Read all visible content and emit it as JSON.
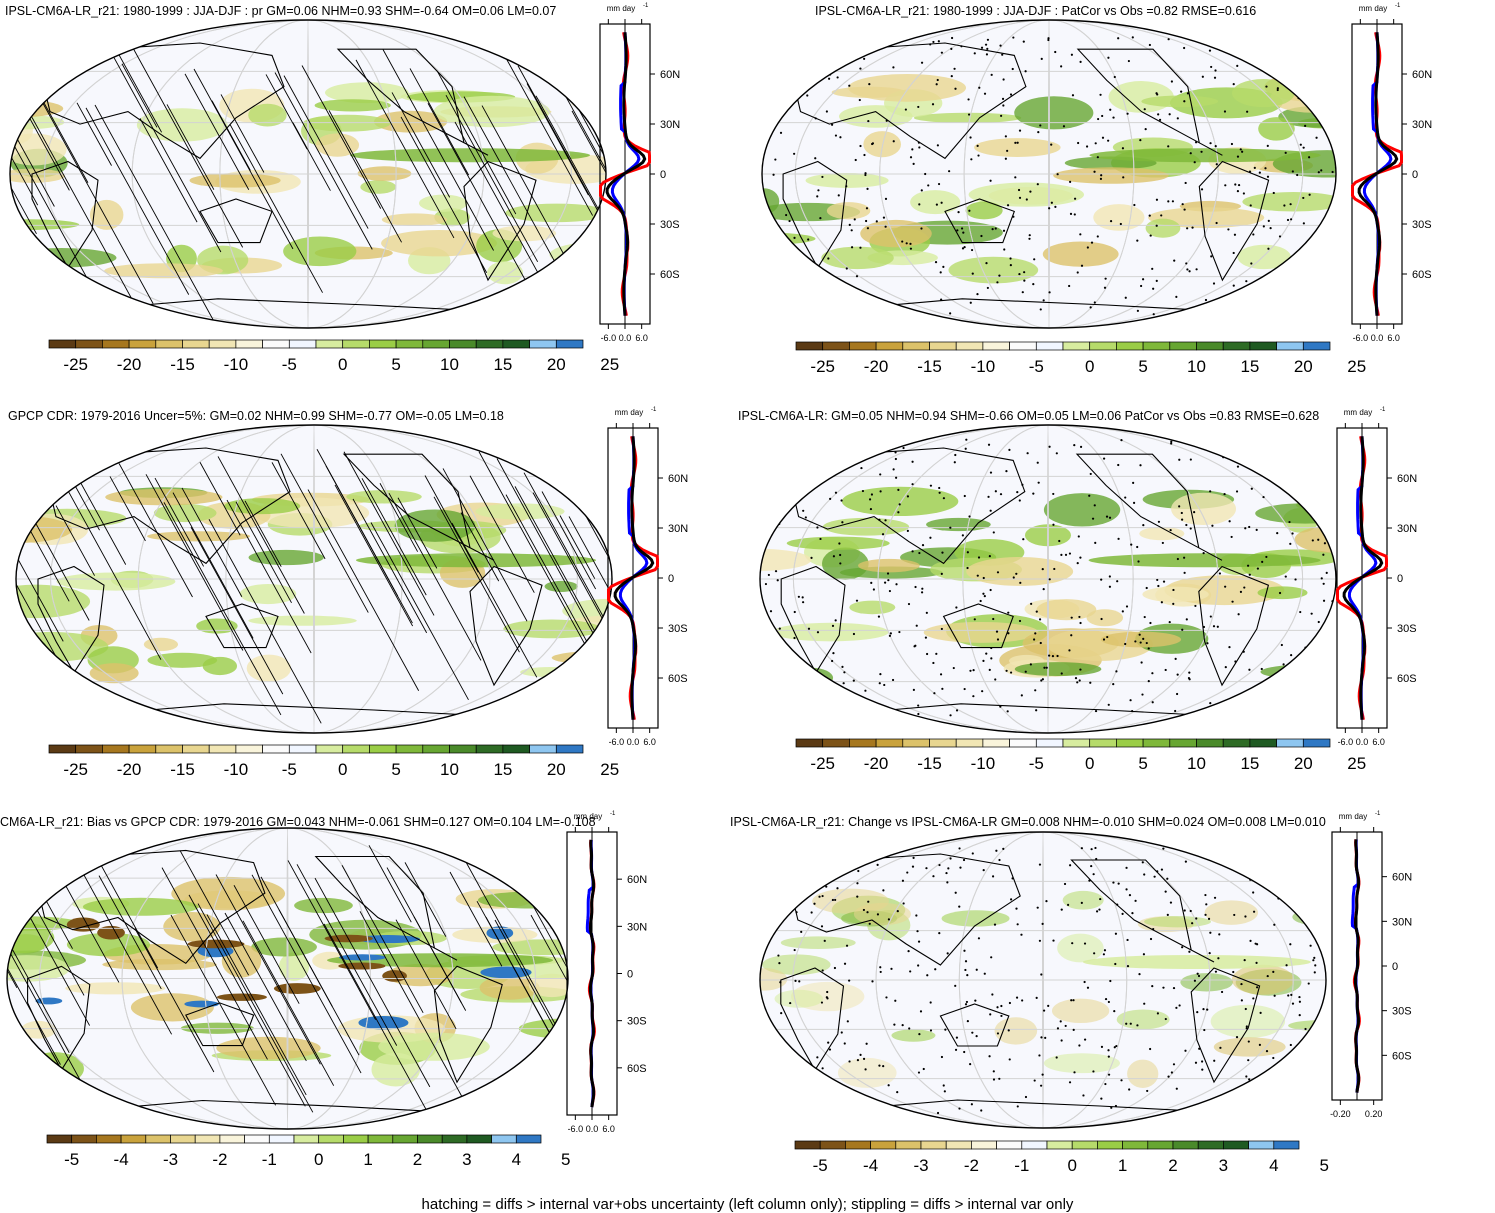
{
  "panels": [
    {
      "title": "IPSL-CM6A-LR_r21: 1980-1999 : JJA-DJF : pr GM=0.06 NHM=0.93 SHM=-0.64 OM=0.06 LM=0.07",
      "profile": {
        "unit": "mm day",
        "unit_sup": "-1",
        "xticks": [
          "-6.0",
          "0.0",
          "6.0"
        ],
        "yticks": [
          "60N",
          "30N",
          "0",
          "30S",
          "60S"
        ],
        "xlim": [
          -9,
          9
        ]
      },
      "colorbar": {
        "labels": [
          "-25",
          "-20",
          "-15",
          "-10",
          "-5",
          "0",
          "5",
          "10",
          "15",
          "20",
          "25"
        ]
      },
      "overlay": "hatching"
    },
    {
      "title": "IPSL-CM6A-LR_r21: 1980-1999 : JJA-DJF : PatCor vs Obs =0.82 RMSE=0.616",
      "profile": {
        "unit": "mm day",
        "unit_sup": "-1",
        "xticks": [
          "-6.0",
          "0.0",
          "6.0"
        ],
        "yticks": [
          "60N",
          "30N",
          "0",
          "30S",
          "60S"
        ],
        "xlim": [
          -9,
          9
        ]
      },
      "colorbar": {
        "labels": [
          "-25",
          "-20",
          "-15",
          "-10",
          "-5",
          "0",
          "5",
          "10",
          "15",
          "20",
          "25"
        ]
      },
      "overlay": "stippling"
    },
    {
      "title": "GPCP CDR: 1979-2016 Uncer=5%: GM=0.02 NHM=0.99 SHM=-0.77 OM=-0.05 LM=0.18",
      "profile": {
        "unit": "mm day",
        "unit_sup": "-1",
        "xticks": [
          "-6.0",
          "0.0",
          "6.0"
        ],
        "yticks": [
          "60N",
          "30N",
          "0",
          "30S",
          "60S"
        ],
        "xlim": [
          -9,
          9
        ]
      },
      "colorbar": {
        "labels": [
          "-25",
          "-20",
          "-15",
          "-10",
          "-5",
          "0",
          "5",
          "10",
          "15",
          "20",
          "25"
        ]
      },
      "overlay": "hatching"
    },
    {
      "title": "IPSL-CM6A-LR: GM=0.05 NHM=0.94 SHM=-0.66 OM=0.05 LM=0.06 PatCor vs Obs =0.83 RMSE=0.628",
      "profile": {
        "unit": "mm day",
        "unit_sup": "-1",
        "xticks": [
          "-6.0",
          "0.0",
          "6.0"
        ],
        "yticks": [
          "60N",
          "30N",
          "0",
          "30S",
          "60S"
        ],
        "xlim": [
          -9,
          9
        ]
      },
      "colorbar": {
        "labels": [
          "-25",
          "-20",
          "-15",
          "-10",
          "-5",
          "0",
          "5",
          "10",
          "15",
          "20",
          "25"
        ]
      },
      "overlay": "stippling"
    },
    {
      "title": "CM6A-LR_r21: Bias vs GPCP CDR: 1979-2016 GM=0.043 NHM=-0.061 SHM=0.127 OM=0.104 LM=-0.108",
      "profile": {
        "unit": "mm day",
        "unit_sup": "-1",
        "xticks": [
          "-6.0",
          "0.0",
          "6.0"
        ],
        "yticks": [
          "60N",
          "30N",
          "0",
          "30S",
          "60S"
        ],
        "xlim": [
          -9,
          9
        ]
      },
      "colorbar": {
        "labels": [
          "-5",
          "-4",
          "-3",
          "-2",
          "-1",
          "0",
          "1",
          "2",
          "3",
          "4",
          "5"
        ]
      },
      "overlay": "hatching"
    },
    {
      "title": "IPSL-CM6A-LR_r21: Change vs IPSL-CM6A-LR GM=0.008 NHM=-0.010 SHM=0.024 OM=0.008 LM=0.010",
      "profile": {
        "unit": "mm day",
        "unit_sup": "-1",
        "xticks": [
          "-0.20",
          "0.20"
        ],
        "yticks": [
          "60N",
          "30N",
          "0",
          "30S",
          "60S"
        ],
        "xlim": [
          -0.3,
          0.3
        ]
      },
      "colorbar": {
        "labels": [
          "-5",
          "-4",
          "-3",
          "-2",
          "-1",
          "0",
          "1",
          "2",
          "3",
          "4",
          "5"
        ]
      },
      "overlay": "stippling"
    }
  ],
  "colors": {
    "palette": [
      "#5b3a14",
      "#7d5318",
      "#a6771f",
      "#c9a23c",
      "#dcc26a",
      "#e8d690",
      "#f1e6b4",
      "#f9f4db",
      "#fbfbfb",
      "#f1f6ff",
      "#d7ec9f",
      "#b6db6a",
      "#9acd46",
      "#7fb83a",
      "#67a632",
      "#4a8a2a",
      "#2e6b25",
      "#1f5a22",
      "#8ec6f0",
      "#2f78c4"
    ],
    "model_line": "#ff0000",
    "obs_line": "#0000ff",
    "mean_line": "#000000"
  },
  "footer": "hatching = diffs > internal var+obs uncertainty (left column only); stippling = diffs > internal var only"
}
